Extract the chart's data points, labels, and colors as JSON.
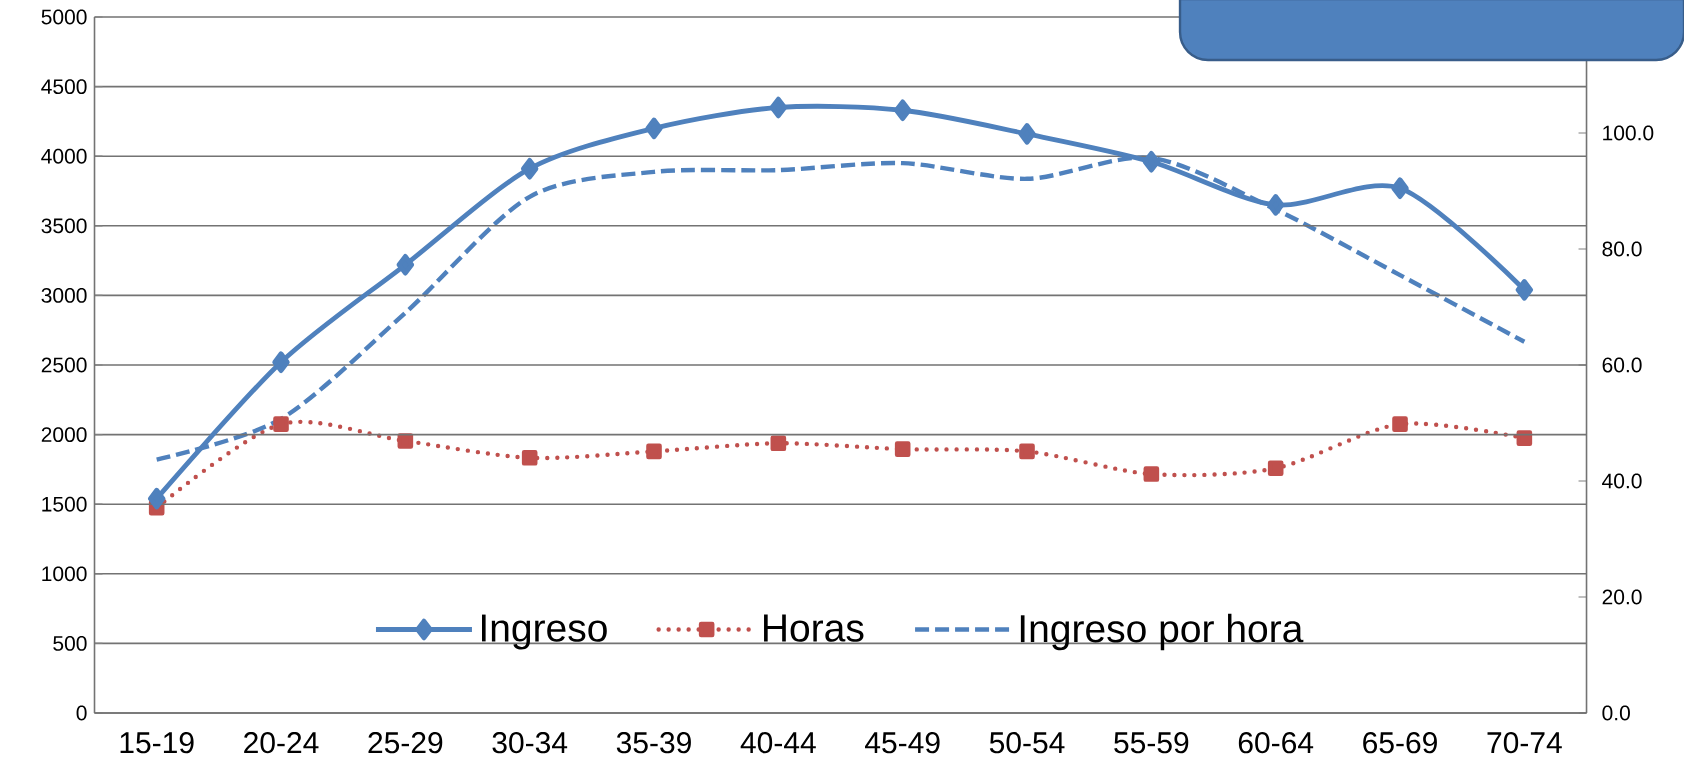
{
  "chart_data": {
    "type": "line",
    "categories": [
      "15-19",
      "20-24",
      "25-29",
      "30-34",
      "35-39",
      "40-44",
      "45-49",
      "50-54",
      "55-59",
      "60-64",
      "65-69",
      "70-74"
    ],
    "series": [
      {
        "name": "Ingreso",
        "color": "#4f81bd",
        "marker": "diamond",
        "line_style": "solid",
        "values": [
          1540,
          2520,
          3220,
          3910,
          4200,
          4350,
          4330,
          4160,
          3960,
          3650,
          3770,
          3040
        ]
      },
      {
        "name": "Horas",
        "color": "#c0504d",
        "marker": "square",
        "line_style": "dotted",
        "axis": "y2",
        "values": [
          35.4,
          49.8,
          46.9,
          44.0,
          45.1,
          46.5,
          45.5,
          45.1,
          41.2,
          42.2,
          49.8,
          47.4
        ]
      },
      {
        "name": "Ingreso por hora",
        "color": "#4f81bd",
        "marker": "none",
        "line_style": "dashed",
        "axis": "y2",
        "values": [
          43.7,
          50.7,
          69.0,
          89.0,
          93.3,
          93.6,
          94.8,
          92.1,
          95.7,
          86.8,
          75.5,
          64.0
        ]
      }
    ],
    "ylim": [
      0,
      5000
    ],
    "yticks": [
      0,
      500,
      1000,
      1500,
      2000,
      2500,
      3000,
      3500,
      4000,
      4500,
      5000
    ],
    "y2lim": [
      0,
      120
    ],
    "y2ticks": [
      {
        "value": 0,
        "label": "0.0"
      },
      {
        "value": 20,
        "label": "20.0"
      },
      {
        "value": 40,
        "label": "40.0"
      },
      {
        "value": 60,
        "label": "60.0"
      },
      {
        "value": 80,
        "label": "80.0"
      },
      {
        "value": 100,
        "label": "100.0"
      }
    ],
    "grid": "y",
    "legend": "bottom"
  }
}
